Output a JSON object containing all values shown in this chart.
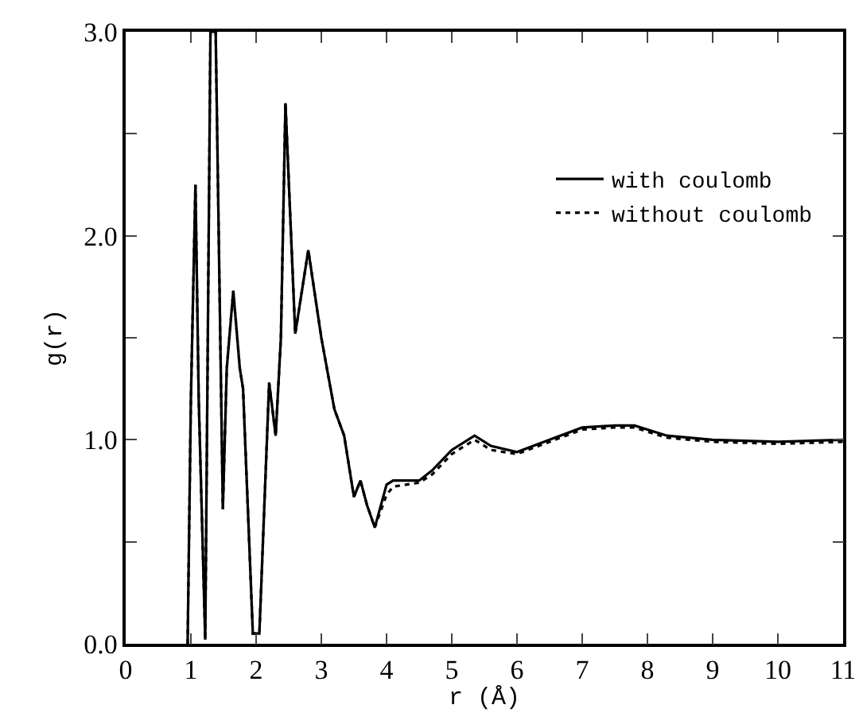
{
  "chart_data": {
    "type": "line",
    "xlabel": "r (Å)",
    "ylabel": "g(r)",
    "xlim": [
      0,
      11
    ],
    "xticks": [
      0,
      1,
      2,
      3,
      4,
      5,
      6,
      7,
      8,
      9,
      10,
      11
    ],
    "ylim": [
      0,
      3
    ],
    "yticks": [
      {
        "value": 0,
        "label": "0.0"
      },
      {
        "value": 0.5,
        "label": null
      },
      {
        "value": 1,
        "label": "1.0"
      },
      {
        "value": 1.5,
        "label": null
      },
      {
        "value": 2,
        "label": "2.0"
      },
      {
        "value": 2.5,
        "label": null
      },
      {
        "value": 3,
        "label": "3.0"
      }
    ],
    "x": [
      0.95,
      1.0,
      1.07,
      1.12,
      1.22,
      1.3,
      1.38,
      1.49,
      1.55,
      1.65,
      1.75,
      1.8,
      1.95,
      2.05,
      2.2,
      2.3,
      2.38,
      2.45,
      2.6,
      2.8,
      3.0,
      3.2,
      3.35,
      3.5,
      3.6,
      3.7,
      3.82,
      4.0,
      4.1,
      4.5,
      4.7,
      5.0,
      5.35,
      5.6,
      6.0,
      6.5,
      7.0,
      7.5,
      7.8,
      8.3,
      9.0,
      10.0,
      11.0
    ],
    "series": [
      {
        "name": "with coulomb",
        "color": "#000000",
        "line_style": "solid",
        "values": [
          0,
          1.2,
          2.25,
          1.2,
          0.02,
          3.0,
          3.0,
          0.66,
          1.35,
          1.73,
          1.35,
          1.25,
          0.05,
          0.05,
          1.28,
          1.02,
          1.5,
          2.65,
          1.52,
          1.93,
          1.5,
          1.15,
          1.02,
          0.72,
          0.8,
          0.68,
          0.57,
          0.78,
          0.8,
          0.8,
          0.85,
          0.95,
          1.02,
          0.97,
          0.94,
          1.0,
          1.06,
          1.07,
          1.07,
          1.02,
          1.0,
          0.99,
          1.0
        ]
      },
      {
        "name": "without coulomb",
        "color": "#000000",
        "line_style": "dotted",
        "values": [
          0,
          1.2,
          2.25,
          1.2,
          0.02,
          3.0,
          3.0,
          0.66,
          1.35,
          1.73,
          1.35,
          1.25,
          0.05,
          0.05,
          1.28,
          1.02,
          1.5,
          2.65,
          1.52,
          1.93,
          1.5,
          1.15,
          1.02,
          0.72,
          0.8,
          0.68,
          0.57,
          0.73,
          0.77,
          0.79,
          0.83,
          0.93,
          1.0,
          0.95,
          0.93,
          0.99,
          1.05,
          1.06,
          1.06,
          1.01,
          0.99,
          0.98,
          0.99
        ]
      }
    ],
    "legend": "top right",
    "grid": false,
    "marker": "none"
  }
}
